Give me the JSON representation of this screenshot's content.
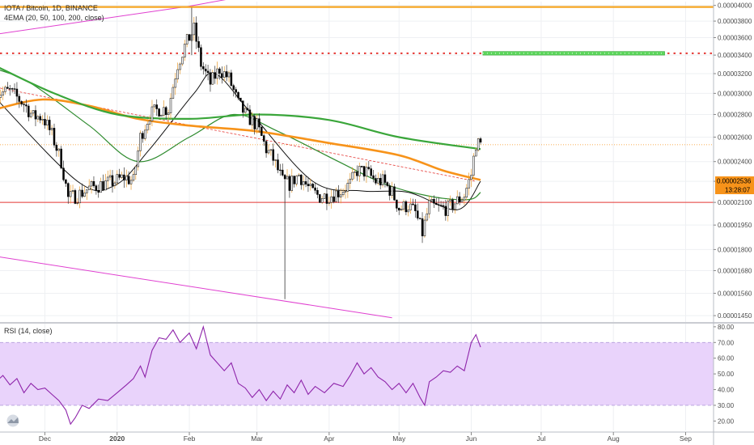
{
  "header": {
    "symbol_title": "IOTA / Bitcoin, 1D, BINANCE",
    "ema_label": "4EMA (20, 50, 100, 200, close)",
    "rsi_label": "RSI (14, close)"
  },
  "price_badges": {
    "last_price": "0.00002536",
    "countdown": "13:28:07"
  },
  "colors": {
    "bull": "#ffffff",
    "bear": "#000000",
    "wick_bull": "#e69a2e",
    "ema20": "#111111",
    "ema50": "#2e8b2e",
    "ema100": "#f7931a",
    "ema200": "#3aa63a",
    "channel": "#e040d0",
    "resistance": "#f5a623",
    "dotted": "#e53935",
    "support": "#e53935",
    "target_box": "#5cd65c",
    "rsi_line": "#8e24aa",
    "rsi_band": "#e9d3fb"
  },
  "chart_data": [
    {
      "type": "candlestick",
      "title": "IOTA / Bitcoin, 1D, BINANCE",
      "x_tick_labels": [
        "Dec",
        "2020",
        "Feb",
        "Mar",
        "Apr",
        "May",
        "Jun",
        "Jul",
        "Aug",
        "Sep"
      ],
      "x_tick_dates": [
        "2019-12-01",
        "2020-01-01",
        "2020-02-01",
        "2020-03-01",
        "2020-04-01",
        "2020-05-01",
        "2020-06-01",
        "2020-07-01",
        "2020-08-01",
        "2020-09-01"
      ],
      "y_tick_labels": [
        "0.00004000",
        "0.00003800",
        "0.00003600",
        "0.00003400",
        "0.00003200",
        "0.00003000",
        "0.00002800",
        "0.00002600",
        "0.00002400",
        "0.00002250",
        "0.00002100",
        "0.00001950",
        "0.00001800",
        "0.00001680",
        "0.00001560",
        "0.00001450"
      ],
      "y_scale": "log",
      "ylim": [
        1.42e-05,
        4.05e-05
      ],
      "start_date": "2019-11-10",
      "ohlc": [],
      "anchors": [
        [
          "2019-11-10",
          3e-05
        ],
        [
          "2019-11-16",
          3.02e-05
        ],
        [
          "2019-11-22",
          2.9e-05
        ],
        [
          "2019-11-26",
          2.78e-05
        ],
        [
          "2019-11-30",
          2.78e-05
        ],
        [
          "2019-12-04",
          2.62e-05
        ],
        [
          "2019-12-08",
          2.4e-05
        ],
        [
          "2019-12-11",
          2.13e-05
        ],
        [
          "2019-12-15",
          2.15e-05
        ],
        [
          "2019-12-20",
          2.2e-05
        ],
        [
          "2019-12-26",
          2.23e-05
        ],
        [
          "2019-12-31",
          2.25e-05
        ],
        [
          "2020-01-04",
          2.28e-05
        ],
        [
          "2020-01-08",
          2.25e-05
        ],
        [
          "2020-01-11",
          2.6e-05
        ],
        [
          "2020-01-15",
          2.8e-05
        ],
        [
          "2020-01-19",
          2.85e-05
        ],
        [
          "2020-01-23",
          2.85e-05
        ],
        [
          "2020-01-27",
          3.3e-05
        ],
        [
          "2020-01-30",
          3.5e-05
        ],
        [
          "2020-02-03",
          3.7e-05
        ],
        [
          "2020-02-06",
          3.3e-05
        ],
        [
          "2020-02-10",
          3.1e-05
        ],
        [
          "2020-02-14",
          3.25e-05
        ],
        [
          "2020-02-18",
          3.15e-05
        ],
        [
          "2020-02-22",
          2.9e-05
        ],
        [
          "2020-02-25",
          2.8e-05
        ],
        [
          "2020-03-01",
          2.7e-05
        ],
        [
          "2020-03-05",
          2.5e-05
        ],
        [
          "2020-03-08",
          2.42e-05
        ],
        [
          "2020-03-12",
          2.25e-05
        ],
        [
          "2020-03-15",
          2.23e-05
        ],
        [
          "2020-03-19",
          2.3e-05
        ],
        [
          "2020-03-24",
          2.18e-05
        ],
        [
          "2020-03-28",
          2.14e-05
        ],
        [
          "2020-04-02",
          2.15e-05
        ],
        [
          "2020-04-06",
          2.18e-05
        ],
        [
          "2020-04-10",
          2.23e-05
        ],
        [
          "2020-04-13",
          2.33e-05
        ],
        [
          "2020-04-17",
          2.32e-05
        ],
        [
          "2020-04-21",
          2.25e-05
        ],
        [
          "2020-04-24",
          2.25e-05
        ],
        [
          "2020-04-28",
          2.17e-05
        ],
        [
          "2020-05-01",
          2.06e-05
        ],
        [
          "2020-05-05",
          2.08e-05
        ],
        [
          "2020-05-08",
          2.03e-05
        ],
        [
          "2020-05-11",
          1.9e-05
        ],
        [
          "2020-05-14",
          2.08e-05
        ],
        [
          "2020-05-18",
          2.06e-05
        ],
        [
          "2020-05-22",
          2.06e-05
        ],
        [
          "2020-05-26",
          2.11e-05
        ],
        [
          "2020-05-29",
          2.15e-05
        ],
        [
          "2020-06-01",
          2.3e-05
        ],
        [
          "2020-06-03",
          2.55e-05
        ],
        [
          "2020-06-05",
          2.536e-05
        ]
      ],
      "ema_series": [
        {
          "name": "EMA 20",
          "points": [
            [
              "2019-11-10",
              2.95e-05
            ],
            [
              "2019-12-15",
              2.25e-05
            ],
            [
              "2019-12-31",
              2.22e-05
            ],
            [
              "2020-01-15",
              2.5e-05
            ],
            [
              "2020-02-03",
              3e-05
            ],
            [
              "2020-02-12",
              3.2e-05
            ],
            [
              "2020-02-28",
              2.8e-05
            ],
            [
              "2020-03-25",
              2.25e-05
            ],
            [
              "2020-04-15",
              2.18e-05
            ],
            [
              "2020-05-05",
              2.17e-05
            ],
            [
              "2020-05-26",
              2.05e-05
            ],
            [
              "2020-06-05",
              2.25e-05
            ]
          ]
        },
        {
          "name": "EMA 50",
          "points": [
            [
              "2019-11-10",
              3.25e-05
            ],
            [
              "2019-11-25",
              3.1e-05
            ],
            [
              "2019-12-20",
              2.7e-05
            ],
            [
              "2020-01-10",
              2.4e-05
            ],
            [
              "2020-02-01",
              2.6e-05
            ],
            [
              "2020-02-20",
              2.8e-05
            ],
            [
              "2020-03-10",
              2.65e-05
            ],
            [
              "2020-04-05",
              2.4e-05
            ],
            [
              "2020-04-25",
              2.23e-05
            ],
            [
              "2020-05-15",
              2.14e-05
            ],
            [
              "2020-05-31",
              2.12e-05
            ],
            [
              "2020-06-05",
              2.17e-05
            ]
          ]
        },
        {
          "name": "EMA 100",
          "points": [
            [
              "2019-11-10",
              2.85e-05
            ],
            [
              "2019-11-30",
              2.94e-05
            ],
            [
              "2019-12-20",
              2.88e-05
            ],
            [
              "2020-01-10",
              2.76e-05
            ],
            [
              "2020-02-01",
              2.7e-05
            ],
            [
              "2020-03-01",
              2.65e-05
            ],
            [
              "2020-04-01",
              2.55e-05
            ],
            [
              "2020-05-01",
              2.45e-05
            ],
            [
              "2020-05-20",
              2.33e-05
            ],
            [
              "2020-06-05",
              2.26e-05
            ]
          ]
        },
        {
          "name": "EMA 200",
          "points": [
            [
              "2019-11-10",
              3.28e-05
            ],
            [
              "2019-12-05",
              3e-05
            ],
            [
              "2020-01-01",
              2.8e-05
            ],
            [
              "2020-02-01",
              2.76e-05
            ],
            [
              "2020-03-01",
              2.8e-05
            ],
            [
              "2020-04-01",
              2.75e-05
            ],
            [
              "2020-05-01",
              2.6e-05
            ],
            [
              "2020-06-05",
              2.5e-05
            ]
          ]
        }
      ],
      "drawings": {
        "resistance_line": 3.98e-05,
        "dotted_resistance": 3.42e-05,
        "support_line": 2.1e-05,
        "current_price_line": 2.536e-05,
        "target_box": {
          "from": "2020-06-06",
          "to": "2020-08-23",
          "low": 3.4e-05,
          "high": 3.44e-05
        },
        "upper_channel": [
          [
            "2019-11-10",
            3.64e-05
          ],
          [
            "2020-02-01",
            3.99e-05
          ],
          [
            "2020-03-18",
            4.25e-05
          ]
        ],
        "lower_channel": [
          [
            "2019-11-10",
            1.76e-05
          ],
          [
            "2020-04-28",
            1.44e-05
          ]
        ],
        "downtrend_dashed": [
          [
            "2019-11-10",
            3.06e-05
          ],
          [
            "2020-06-03",
            2.25e-05
          ]
        ]
      }
    },
    {
      "type": "line",
      "title": "RSI (14, close)",
      "ylim": [
        14,
        82
      ],
      "y_tick_labels": [
        "80.00",
        "70.00",
        "60.00",
        "50.00",
        "40.00",
        "30.00",
        "20.00"
      ],
      "band": [
        30,
        70
      ],
      "points": [
        [
          "2019-11-10",
          45
        ],
        [
          "2019-11-13",
          49
        ],
        [
          "2019-11-16",
          43
        ],
        [
          "2019-11-19",
          47
        ],
        [
          "2019-11-22",
          38
        ],
        [
          "2019-11-25",
          44
        ],
        [
          "2019-11-28",
          40
        ],
        [
          "2019-12-01",
          41
        ],
        [
          "2019-12-04",
          37
        ],
        [
          "2019-12-07",
          33
        ],
        [
          "2019-12-10",
          27
        ],
        [
          "2019-12-12",
          18
        ],
        [
          "2019-12-14",
          22
        ],
        [
          "2019-12-17",
          30
        ],
        [
          "2019-12-20",
          28
        ],
        [
          "2019-12-24",
          34
        ],
        [
          "2019-12-28",
          33
        ],
        [
          "2020-01-01",
          38
        ],
        [
          "2020-01-05",
          43
        ],
        [
          "2020-01-08",
          47
        ],
        [
          "2020-01-11",
          55
        ],
        [
          "2020-01-13",
          48
        ],
        [
          "2020-01-16",
          65
        ],
        [
          "2020-01-19",
          73
        ],
        [
          "2020-01-22",
          72
        ],
        [
          "2020-01-25",
          78
        ],
        [
          "2020-01-28",
          70
        ],
        [
          "2020-02-01",
          76
        ],
        [
          "2020-02-04",
          66
        ],
        [
          "2020-02-07",
          80
        ],
        [
          "2020-02-10",
          62
        ],
        [
          "2020-02-13",
          57
        ],
        [
          "2020-02-16",
          52
        ],
        [
          "2020-02-19",
          57
        ],
        [
          "2020-02-22",
          44
        ],
        [
          "2020-02-25",
          41
        ],
        [
          "2020-02-28",
          35
        ],
        [
          "2020-03-02",
          40
        ],
        [
          "2020-03-05",
          33
        ],
        [
          "2020-03-08",
          39
        ],
        [
          "2020-03-11",
          34
        ],
        [
          "2020-03-14",
          43
        ],
        [
          "2020-03-17",
          38
        ],
        [
          "2020-03-20",
          46
        ],
        [
          "2020-03-23",
          37
        ],
        [
          "2020-03-26",
          42
        ],
        [
          "2020-03-30",
          38
        ],
        [
          "2020-04-03",
          44
        ],
        [
          "2020-04-07",
          42
        ],
        [
          "2020-04-10",
          49
        ],
        [
          "2020-04-13",
          57
        ],
        [
          "2020-04-16",
          50
        ],
        [
          "2020-04-19",
          54
        ],
        [
          "2020-04-22",
          48
        ],
        [
          "2020-04-25",
          45
        ],
        [
          "2020-04-28",
          40
        ],
        [
          "2020-05-01",
          44
        ],
        [
          "2020-05-04",
          38
        ],
        [
          "2020-05-07",
          44
        ],
        [
          "2020-05-10",
          35
        ],
        [
          "2020-05-12",
          30
        ],
        [
          "2020-05-14",
          45
        ],
        [
          "2020-05-17",
          48
        ],
        [
          "2020-05-20",
          52
        ],
        [
          "2020-05-23",
          51
        ],
        [
          "2020-05-26",
          55
        ],
        [
          "2020-05-29",
          52
        ],
        [
          "2020-06-01",
          70
        ],
        [
          "2020-06-03",
          75
        ],
        [
          "2020-06-05",
          67
        ]
      ]
    }
  ]
}
